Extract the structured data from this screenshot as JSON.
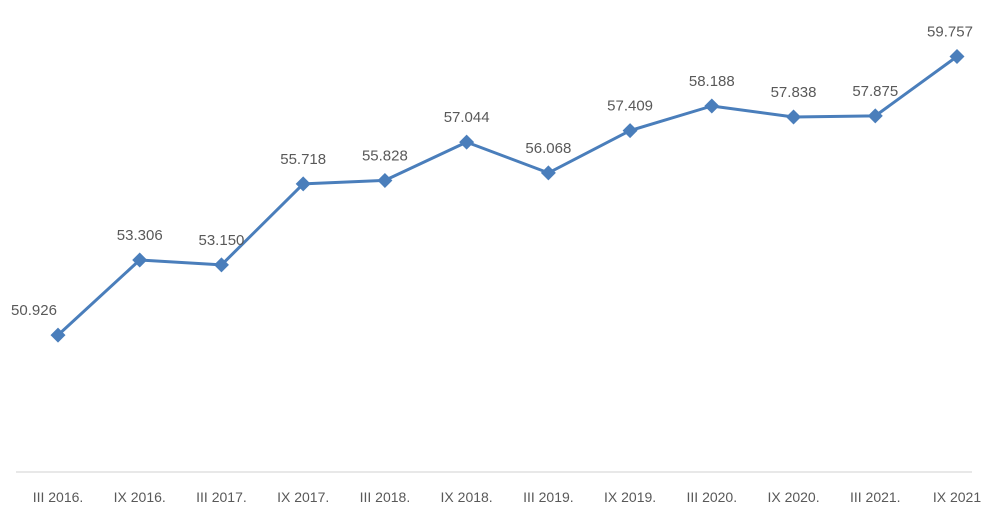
{
  "chart_data": {
    "type": "line",
    "title": "",
    "xlabel": "",
    "ylabel": "",
    "categories": [
      "III 2016.",
      "IX 2016.",
      "III 2017.",
      "IX 2017.",
      "III 2018.",
      "IX 2018.",
      "III 2019.",
      "IX 2019.",
      "III 2020.",
      "IX 2020.",
      "III 2021.",
      "IX 2021"
    ],
    "series": [
      {
        "values": [
          50.926,
          53.306,
          53.15,
          55.718,
          55.828,
          57.044,
          56.068,
          57.409,
          58.188,
          57.838,
          57.875,
          59.757
        ],
        "labels": [
          "50.926",
          "53.306",
          "53.150",
          "55.718",
          "55.828",
          "57.044",
          "56.068",
          "57.409",
          "58.188",
          "57.838",
          "57.875",
          "59.757"
        ],
        "color": "#4a7ebb",
        "marker": "diamond"
      }
    ],
    "ylim": [
      45,
      61
    ],
    "grid": false,
    "legend": "none",
    "data_labels": true
  }
}
